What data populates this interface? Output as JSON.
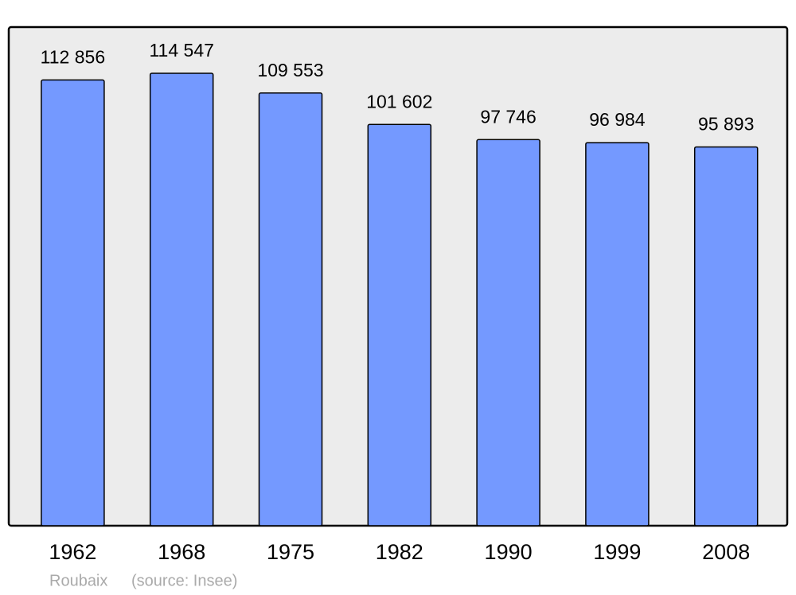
{
  "chart_data": {
    "type": "bar",
    "categories": [
      "1962",
      "1968",
      "1975",
      "1982",
      "1990",
      "1999",
      "2008"
    ],
    "values": [
      112856,
      114547,
      109553,
      101602,
      97746,
      96984,
      95893
    ],
    "value_labels": [
      "112 856",
      "114 547",
      "109 553",
      "101 602",
      "97 746",
      "96 984",
      "95 893"
    ],
    "color": "#7499ff",
    "place": "Roubaix",
    "source": "(source: Insee)"
  }
}
